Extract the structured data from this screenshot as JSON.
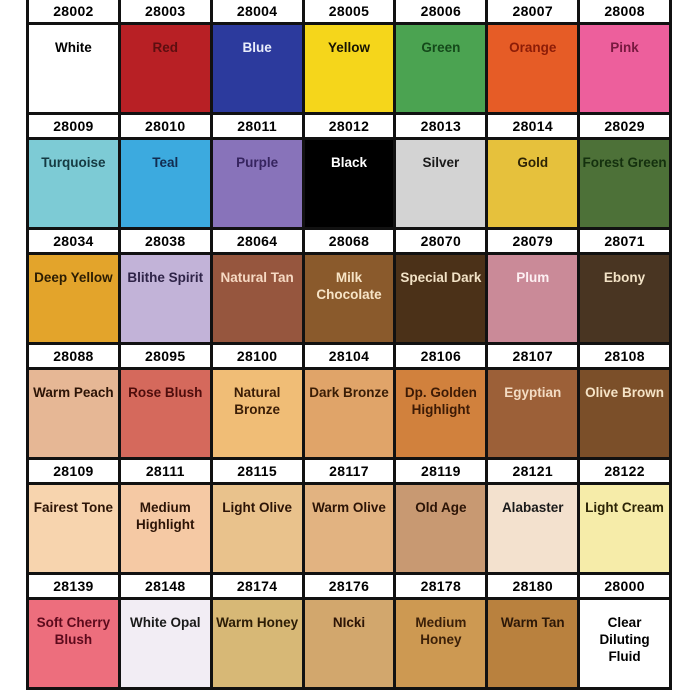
{
  "chart_data": {
    "type": "table",
    "title": "Paint color swatch chart with product codes",
    "columns": 7,
    "rows": 6,
    "cells": [
      [
        {
          "code": "28002",
          "name": "White",
          "bg": "#ffffff",
          "fg": "#000000"
        },
        {
          "code": "28003",
          "name": "Red",
          "bg": "#b82025",
          "fg": "#5c0e10"
        },
        {
          "code": "28004",
          "name": "Blue",
          "bg": "#2c3a9d",
          "fg": "#e9edfb"
        },
        {
          "code": "28005",
          "name": "Yellow",
          "bg": "#f5d61b",
          "fg": "#171403"
        },
        {
          "code": "28006",
          "name": "Green",
          "bg": "#4ba351",
          "fg": "#14491a"
        },
        {
          "code": "28007",
          "name": "Orange",
          "bg": "#e65c26",
          "fg": "#8c1c07"
        },
        {
          "code": "28008",
          "name": "Pink",
          "bg": "#ed5f9c",
          "fg": "#77193f"
        }
      ],
      [
        {
          "code": "28009",
          "name": "Turquoise",
          "bg": "#7dcbd5",
          "fg": "#153a42"
        },
        {
          "code": "28010",
          "name": "Teal",
          "bg": "#3caadf",
          "fg": "#122c50"
        },
        {
          "code": "28011",
          "name": "Purple",
          "bg": "#8873ba",
          "fg": "#36245f"
        },
        {
          "code": "28012",
          "name": "Black",
          "bg": "#000000",
          "fg": "#ffffff"
        },
        {
          "code": "28013",
          "name": "Silver",
          "bg": "#d3d3d3",
          "fg": "#1a1a1a"
        },
        {
          "code": "28014",
          "name": "Gold",
          "bg": "#e6c13c",
          "fg": "#2e2405"
        },
        {
          "code": "28029",
          "name": "Forest Green",
          "bg": "#4d7138",
          "fg": "#14300e"
        }
      ],
      [
        {
          "code": "28034",
          "name": "Deep Yellow",
          "bg": "#e3a42b",
          "fg": "#2c1d03"
        },
        {
          "code": "28038",
          "name": "Blithe Spirit",
          "bg": "#c2b3d8",
          "fg": "#2e2347"
        },
        {
          "code": "28064",
          "name": "Natural Tan",
          "bg": "#96563e",
          "fg": "#f6d9c3"
        },
        {
          "code": "28068",
          "name": "Milk Chocolate",
          "bg": "#8a5a2c",
          "fg": "#f7e4c6"
        },
        {
          "code": "28070",
          "name": "Special Dark",
          "bg": "#4b3118",
          "fg": "#f2e2c6"
        },
        {
          "code": "28079",
          "name": "Plum",
          "bg": "#ca8a98",
          "fg": "#fdf0f3"
        },
        {
          "code": "28071",
          "name": "Ebony",
          "bg": "#493522",
          "fg": "#f2e2c6"
        }
      ],
      [
        {
          "code": "28088",
          "name": "Warm Peach",
          "bg": "#e6b795",
          "fg": "#2c1406"
        },
        {
          "code": "28095",
          "name": "Rose Blush",
          "bg": "#d5695c",
          "fg": "#4e0d0c"
        },
        {
          "code": "28100",
          "name": "Natural Bronze",
          "bg": "#f0bd76",
          "fg": "#3a1d06"
        },
        {
          "code": "28104",
          "name": "Dark Bronze",
          "bg": "#e0a469",
          "fg": "#3a1d06"
        },
        {
          "code": "28106",
          "name": "Dp. Golden Highlight",
          "bg": "#d1813d",
          "fg": "#3c1a05"
        },
        {
          "code": "28107",
          "name": "Egyptian",
          "bg": "#9c6038",
          "fg": "#f3dcc3"
        },
        {
          "code": "28108",
          "name": "Olive Brown",
          "bg": "#7b4f29",
          "fg": "#f5e3c6"
        }
      ],
      [
        {
          "code": "28109",
          "name": "Fairest Tone",
          "bg": "#f7d4ae",
          "fg": "#2c1406"
        },
        {
          "code": "28111",
          "name": "Medium Highlight",
          "bg": "#f5c9a4",
          "fg": "#2c1406"
        },
        {
          "code": "28115",
          "name": "Light Olive",
          "bg": "#e9c28c",
          "fg": "#2c1406"
        },
        {
          "code": "28117",
          "name": "Warm Olive",
          "bg": "#e2b381",
          "fg": "#2c1406"
        },
        {
          "code": "28119",
          "name": "Old Age",
          "bg": "#c89972",
          "fg": "#2c1406"
        },
        {
          "code": "28121",
          "name": "Alabaster",
          "bg": "#f3e1ce",
          "fg": "#1a1a1a"
        },
        {
          "code": "28122",
          "name": "Light Cream",
          "bg": "#f6eca9",
          "fg": "#2c2406"
        }
      ],
      [
        {
          "code": "28139",
          "name": "Soft Cherry Blush",
          "bg": "#ed6e7d",
          "fg": "#5c0a1c"
        },
        {
          "code": "28148",
          "name": "White Opal",
          "bg": "#f2edf4",
          "fg": "#1a1a1a"
        },
        {
          "code": "28174",
          "name": "Warm Honey",
          "bg": "#d7b876",
          "fg": "#2c1d06"
        },
        {
          "code": "28176",
          "name": "NIcki",
          "bg": "#d2a76d",
          "fg": "#2c1406"
        },
        {
          "code": "28178",
          "name": "Medium Honey",
          "bg": "#cd9952",
          "fg": "#3c2008"
        },
        {
          "code": "28180",
          "name": "Warm Tan",
          "bg": "#b9813e",
          "fg": "#2c1808"
        },
        {
          "code": "28000",
          "name": "Clear Diluting Fluid",
          "bg": "#ffffff",
          "fg": "#000000"
        }
      ]
    ]
  }
}
